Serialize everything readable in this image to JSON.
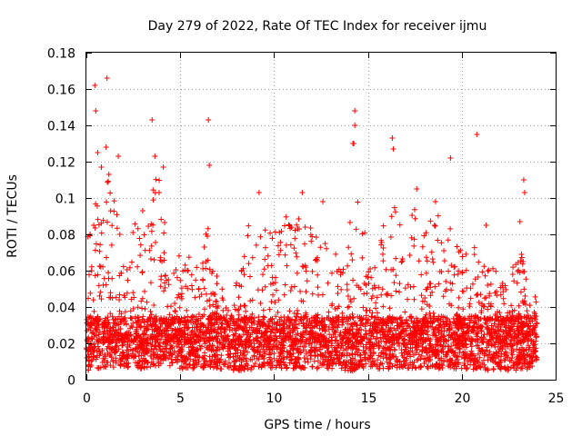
{
  "chart_data": {
    "type": "scatter",
    "title": "Day 279 of 2022, Rate Of TEC Index for receiver ijmu",
    "xlabel": "GPS time / hours",
    "ylabel": "ROTI / TECUs",
    "xlim": [
      0,
      25
    ],
    "ylim": [
      0,
      0.18
    ],
    "x_ticks": [
      0,
      5,
      10,
      15,
      20,
      25
    ],
    "x_tick_labels": [
      "0",
      "5",
      "10",
      "15",
      "20",
      "25"
    ],
    "y_ticks": [
      0,
      0.02,
      0.04,
      0.06,
      0.08,
      0.1,
      0.12,
      0.14,
      0.16,
      0.18
    ],
    "y_tick_labels": [
      "0",
      "0.02",
      "0.04",
      "0.06",
      "0.08",
      "0.1",
      "0.12",
      "0.14",
      "0.16",
      "0.18"
    ],
    "grid": true,
    "marker": "+",
    "color": "#ff0000",
    "series": [
      {
        "name": "ROTI",
        "notable_points": [
          [
            0.45,
            0.162
          ],
          [
            0.5,
            0.148
          ],
          [
            1.1,
            0.166
          ],
          [
            1.05,
            0.128
          ],
          [
            1.7,
            0.123
          ],
          [
            3.5,
            0.143
          ],
          [
            3.65,
            0.123
          ],
          [
            6.5,
            0.143
          ],
          [
            6.55,
            0.118
          ],
          [
            14.3,
            0.148
          ],
          [
            14.3,
            0.14
          ],
          [
            14.25,
            0.13
          ],
          [
            14.2,
            0.13
          ],
          [
            16.3,
            0.133
          ],
          [
            16.35,
            0.127
          ],
          [
            19.4,
            0.122
          ],
          [
            20.8,
            0.135
          ],
          [
            23.3,
            0.11
          ],
          [
            23.35,
            0.103
          ],
          [
            0.2,
            0.08
          ],
          [
            0.6,
            0.125
          ],
          [
            0.8,
            0.117
          ],
          [
            1.2,
            0.113
          ],
          [
            3.0,
            0.093
          ],
          [
            4.1,
            0.117
          ],
          [
            9.2,
            0.103
          ],
          [
            11.5,
            0.103
          ],
          [
            12.6,
            0.098
          ],
          [
            17.6,
            0.105
          ],
          [
            18.6,
            0.098
          ],
          [
            21.3,
            0.085
          ],
          [
            23.1,
            0.087
          ]
        ],
        "cluster_profile": {
          "hours": [
            0,
            0.5,
            1,
            1.5,
            2,
            2.5,
            3,
            3.5,
            4,
            4.5,
            5,
            5.5,
            6,
            6.5,
            7,
            7.5,
            8,
            8.5,
            9,
            9.5,
            10,
            10.5,
            11,
            11.5,
            12,
            12.5,
            13,
            13.5,
            14,
            14.5,
            15,
            15.5,
            16,
            16.5,
            17,
            17.5,
            18,
            18.5,
            19,
            19.5,
            20,
            20.5,
            21,
            21.5,
            22,
            22.5,
            23,
            23.5,
            24
          ],
          "upper_envelope": [
            0.08,
            0.1,
            0.115,
            0.1,
            0.065,
            0.085,
            0.095,
            0.11,
            0.115,
            0.075,
            0.07,
            0.07,
            0.06,
            0.09,
            0.06,
            0.05,
            0.055,
            0.08,
            0.105,
            0.1,
            0.095,
            0.09,
            0.09,
            0.1,
            0.095,
            0.09,
            0.075,
            0.07,
            0.085,
            0.11,
            0.07,
            0.065,
            0.1,
            0.095,
            0.075,
            0.1,
            0.085,
            0.09,
            0.1,
            0.085,
            0.07,
            0.08,
            0.065,
            0.07,
            0.055,
            0.05,
            0.085,
            0.05,
            0.045
          ],
          "lower_envelope": [
            0.005,
            0.006,
            0.006,
            0.007,
            0.007,
            0.006,
            0.006,
            0.007,
            0.008,
            0.007,
            0.006,
            0.006,
            0.006,
            0.006,
            0.005,
            0.005,
            0.005,
            0.005,
            0.006,
            0.006,
            0.006,
            0.006,
            0.006,
            0.006,
            0.006,
            0.006,
            0.006,
            0.006,
            0.004,
            0.006,
            0.006,
            0.006,
            0.006,
            0.006,
            0.006,
            0.006,
            0.006,
            0.006,
            0.006,
            0.006,
            0.006,
            0.005,
            0.006,
            0.005,
            0.005,
            0.005,
            0.005,
            0.005,
            0.005
          ],
          "dense_band_top": 0.035
        }
      }
    ]
  }
}
